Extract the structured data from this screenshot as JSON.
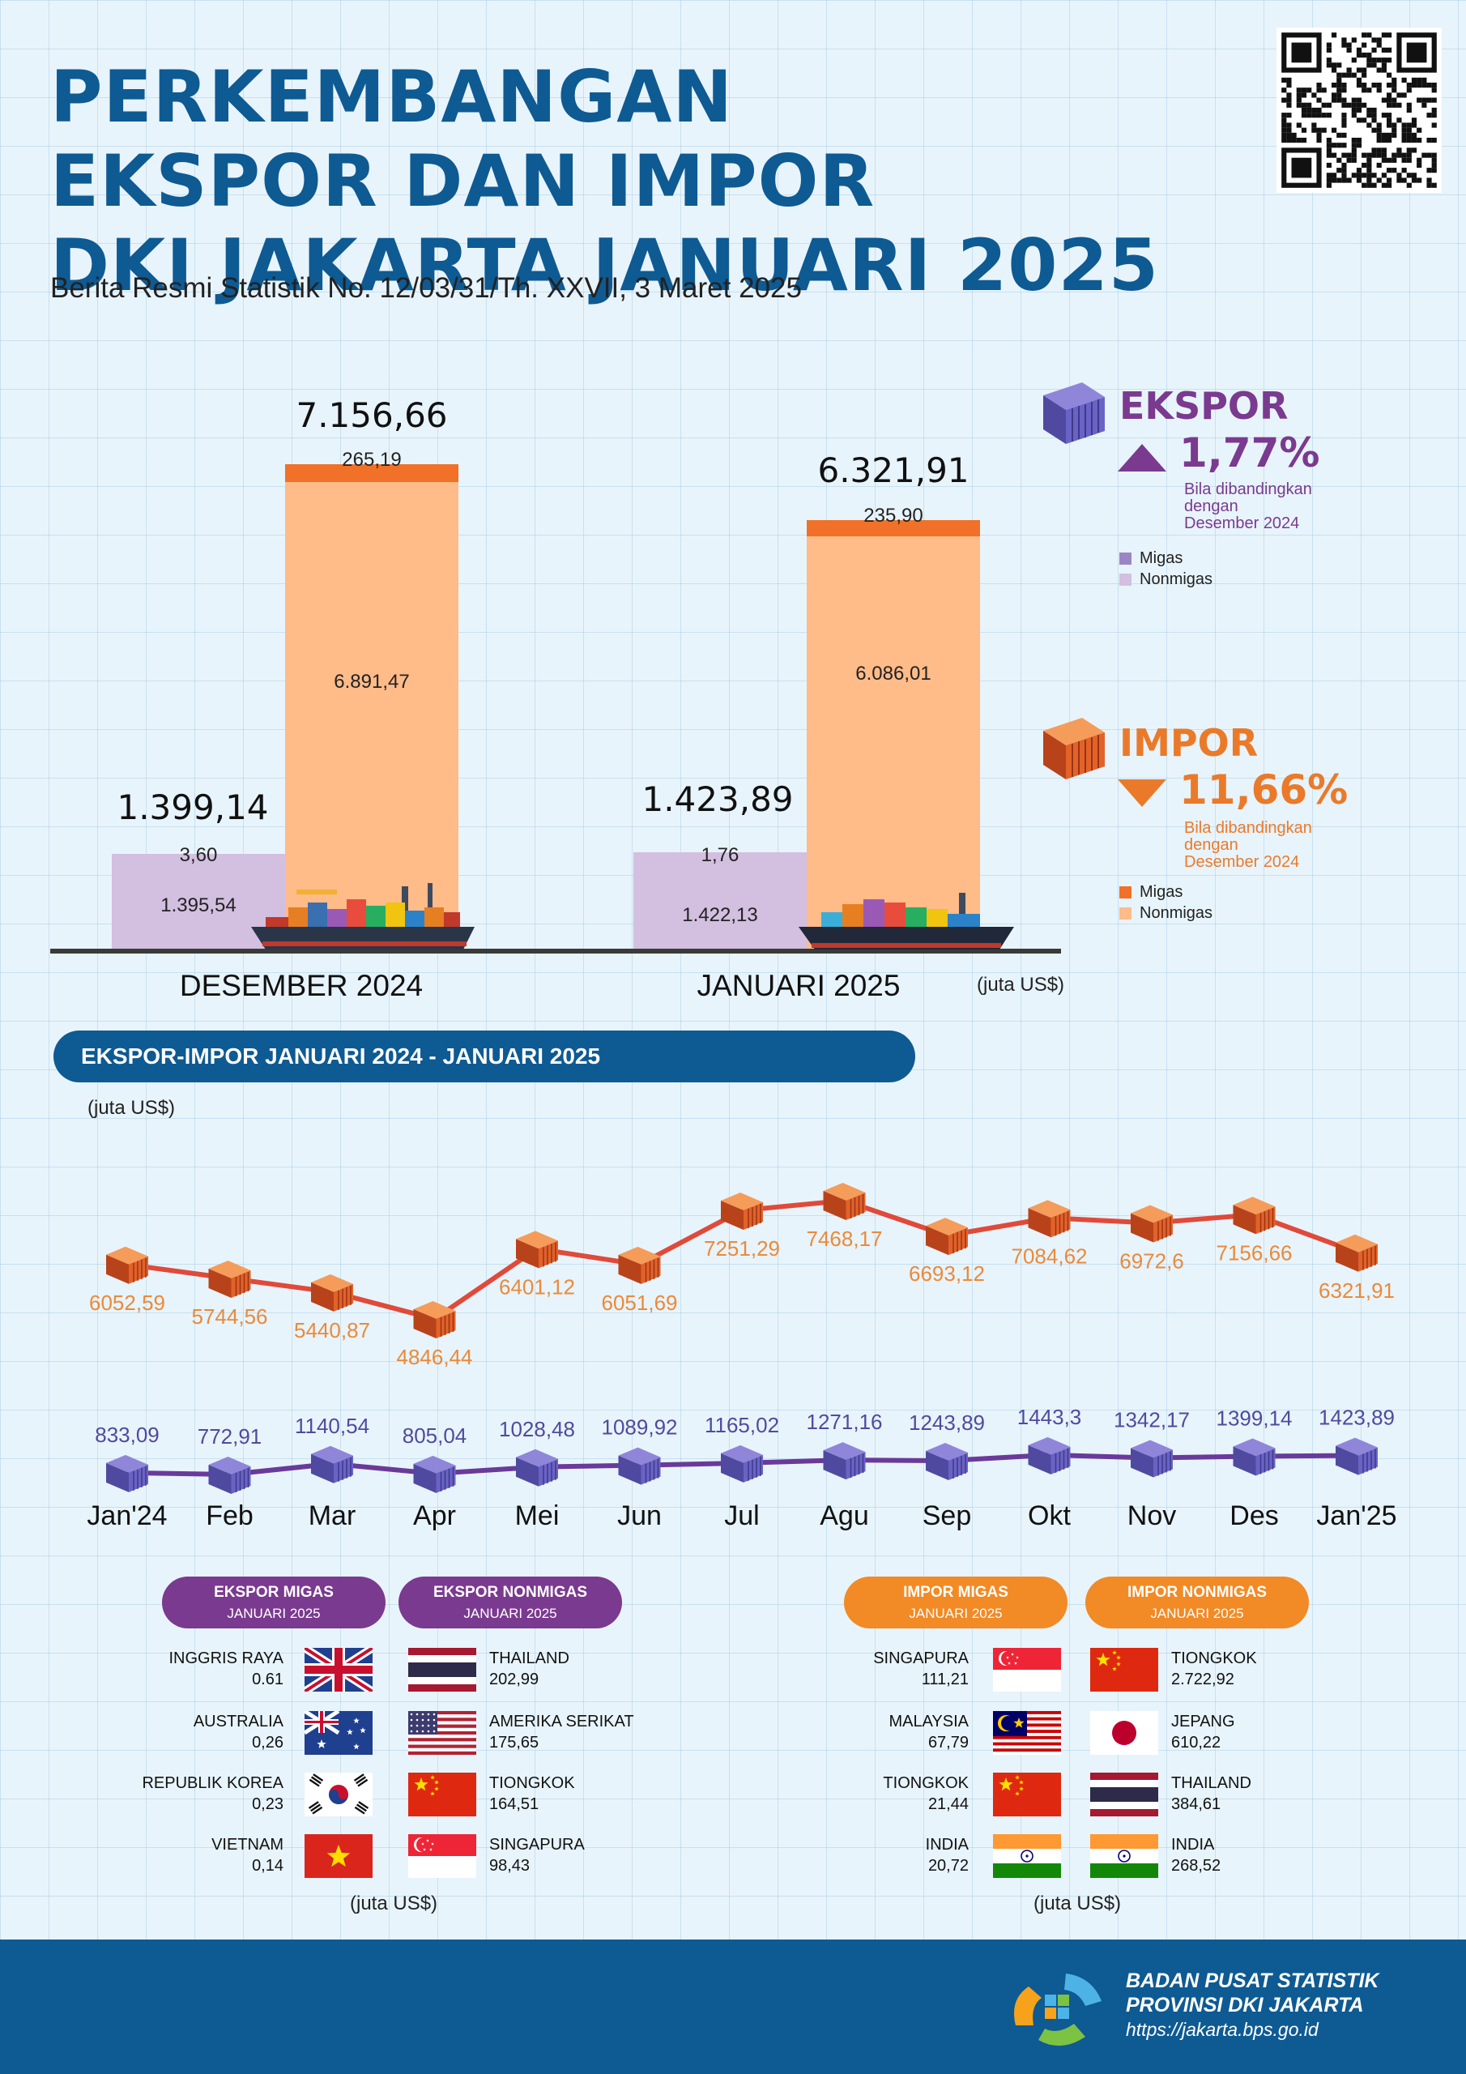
{
  "header": {
    "title_lines": [
      "PERKEMBANGAN",
      "EKSPOR DAN IMPOR",
      "DKI JAKARTA JANUARI 2025"
    ],
    "subtitle": "Berita Resmi Statistik No. 12/03/31/Th. XXVII, 3 Maret 2025"
  },
  "colors": {
    "title_blue": "#0e5a93",
    "ekspor_purple": "#7a3a8f",
    "ekspor_migas": "#9a86c4",
    "ekspor_nonmigas": "#d3bfe0",
    "impor_orange": "#ea7a2a",
    "impor_migas": "#f07127",
    "impor_nonmigas": "#ffbb88",
    "line_impor": "#e04a3a",
    "line_ekspor": "#6a3a9a"
  },
  "legend": {
    "ekspor": {
      "title": "EKSPOR",
      "change": "1,77%",
      "direction": "up",
      "note_lines": [
        "Bila dibandingkan",
        "dengan",
        "Desember 2024"
      ],
      "items": [
        "Migas",
        "Nonmigas"
      ]
    },
    "impor": {
      "title": "IMPOR",
      "change": "11,66%",
      "direction": "down",
      "note_lines": [
        "Bila dibandingkan",
        "dengan",
        "Desember 2024"
      ],
      "items": [
        "Migas",
        "Nonmigas"
      ]
    }
  },
  "unit_label": "(juta US$)",
  "section_banner": "EKSPOR-IMPOR JANUARI 2024 - JANUARI 2025",
  "chart_data": [
    {
      "type": "bar",
      "stacked": true,
      "categories": [
        "DESEMBER 2024",
        "JANUARI 2025"
      ],
      "unit": "(juta US$)",
      "ekspor": {
        "total_labels": [
          "1.399,14",
          "1.423,89"
        ],
        "migas": [
          3.6,
          1.76
        ],
        "migas_labels": [
          "3,60",
          "1,76"
        ],
        "nonmigas": [
          1395.54,
          1422.13
        ],
        "nonmigas_labels": [
          "1.395,54",
          "1.422,13"
        ]
      },
      "impor": {
        "total_labels": [
          "7.156,66",
          "6.321,91"
        ],
        "migas": [
          265.19,
          235.9
        ],
        "migas_labels": [
          "265,19",
          "235,90"
        ],
        "nonmigas": [
          6891.47,
          6086.01
        ],
        "nonmigas_labels": [
          "6.891,47",
          "6.086,01"
        ]
      }
    },
    {
      "type": "line",
      "x": [
        "Jan'24",
        "Feb",
        "Mar",
        "Apr",
        "Mei",
        "Jun",
        "Jul",
        "Agu",
        "Sep",
        "Okt",
        "Nov",
        "Des",
        "Jan'25"
      ],
      "unit": "(juta US$)",
      "series": [
        {
          "key": "impor",
          "values": [
            6052.59,
            5744.56,
            5440.87,
            4846.44,
            6401.12,
            6051.69,
            7251.29,
            7468.17,
            6693.12,
            7084.62,
            6972.6,
            7156.66,
            6321.91
          ],
          "labels": [
            "6052,59",
            "5744,56",
            "5440,87",
            "4846,44",
            "6401,12",
            "6051,69",
            "7251,29",
            "7468,17",
            "6693,12",
            "7084,62",
            "6972,6",
            "7156,66",
            "6321,91"
          ]
        },
        {
          "key": "ekspor",
          "values": [
            833.09,
            772.91,
            1140.54,
            805.04,
            1028.48,
            1089.92,
            1165.02,
            1271.16,
            1243.89,
            1443.3,
            1342.17,
            1399.14,
            1423.89
          ],
          "labels": [
            "833,09",
            "772,91",
            "1140,54",
            "805,04",
            "1028,48",
            "1089,92",
            "1165,02",
            "1271,16",
            "1243,89",
            "1443,3",
            "1342,17",
            "1399,14",
            "1423,89"
          ]
        }
      ]
    }
  ],
  "partners": {
    "ekspor_migas": {
      "title": "EKSPOR MIGAS",
      "period": "JANUARI 2025",
      "rows": [
        {
          "country": "INGGRIS RAYA",
          "value": "0.61",
          "flag": "uk-flag"
        },
        {
          "country": "AUSTRALIA",
          "value": "0,26",
          "flag": "australia-flag"
        },
        {
          "country": "REPUBLIK KOREA",
          "value": "0,23",
          "flag": "korea-flag"
        },
        {
          "country": "VIETNAM",
          "value": "0,14",
          "flag": "vietnam-flag"
        }
      ]
    },
    "ekspor_nonmigas": {
      "title": "EKSPOR NONMIGAS",
      "period": "JANUARI 2025",
      "rows": [
        {
          "country": "THAILAND",
          "value": "202,99",
          "flag": "thailand-flag"
        },
        {
          "country": "AMERIKA SERIKAT",
          "value": "175,65",
          "flag": "usa-flag"
        },
        {
          "country": "TIONGKOK",
          "value": "164,51",
          "flag": "china-flag"
        },
        {
          "country": "SINGAPURA",
          "value": "98,43",
          "flag": "singapore-flag"
        }
      ]
    },
    "impor_migas": {
      "title": "IMPOR MIGAS",
      "period": "JANUARI 2025",
      "rows": [
        {
          "country": "SINGAPURA",
          "value": "111,21",
          "flag": "singapore-flag"
        },
        {
          "country": "MALAYSIA",
          "value": "67,79",
          "flag": "malaysia-flag"
        },
        {
          "country": "TIONGKOK",
          "value": "21,44",
          "flag": "china-flag"
        },
        {
          "country": "INDIA",
          "value": "20,72",
          "flag": "india-flag"
        }
      ]
    },
    "impor_nonmigas": {
      "title": "IMPOR NONMIGAS",
      "period": "JANUARI 2025",
      "rows": [
        {
          "country": "TIONGKOK",
          "value": "2.722,92",
          "flag": "china-flag"
        },
        {
          "country": "JEPANG",
          "value": "610,22",
          "flag": "japan-flag"
        },
        {
          "country": "THAILAND",
          "value": "384,61",
          "flag": "thailand-flag"
        },
        {
          "country": "INDIA",
          "value": "268,52",
          "flag": "india-flag"
        }
      ]
    }
  },
  "footer": {
    "org_line1": "BADAN PUSAT STATISTIK",
    "org_line2": "PROVINSI DKI JAKARTA",
    "url": "https://jakarta.bps.go.id"
  }
}
